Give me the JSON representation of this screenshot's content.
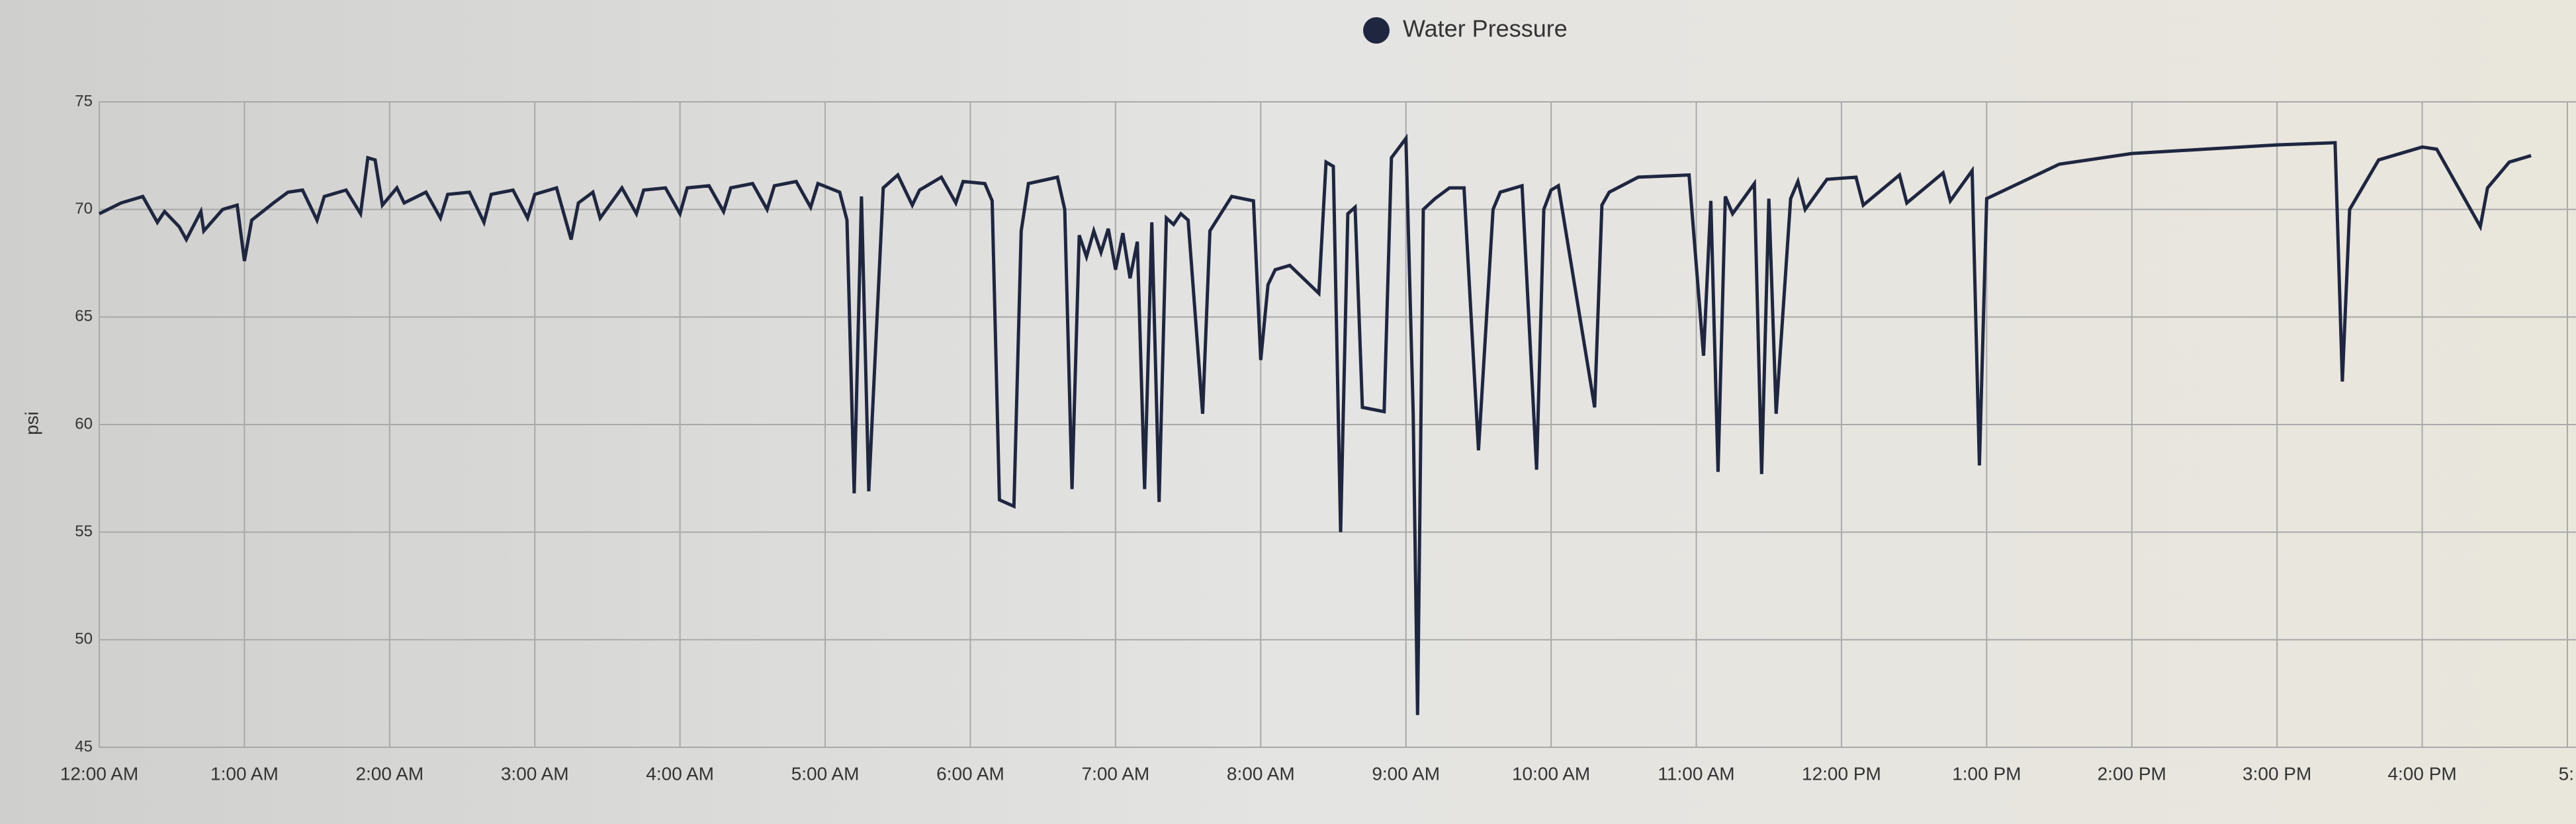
{
  "chart_data": {
    "type": "line",
    "ylabel": "psi",
    "x": [
      0,
      0.15,
      0.3,
      0.4,
      0.45,
      0.55,
      0.6,
      0.7,
      0.72,
      0.85,
      0.95,
      1.0,
      1.05,
      1.2,
      1.3,
      1.4,
      1.5,
      1.55,
      1.7,
      1.8,
      1.85,
      1.9,
      1.95,
      2.05,
      2.1,
      2.25,
      2.35,
      2.4,
      2.55,
      2.65,
      2.7,
      2.85,
      2.95,
      3.0,
      3.15,
      3.25,
      3.3,
      3.4,
      3.45,
      3.6,
      3.7,
      3.75,
      3.9,
      4.0,
      4.05,
      4.2,
      4.3,
      4.35,
      4.5,
      4.6,
      4.65,
      4.8,
      4.9,
      4.95,
      5.1,
      5.15,
      5.2,
      5.25,
      5.3,
      5.4,
      5.5,
      5.6,
      5.65,
      5.8,
      5.9,
      5.95,
      6.1,
      6.15,
      6.2,
      6.3,
      6.35,
      6.4,
      6.6,
      6.65,
      6.7,
      6.75,
      6.8,
      6.85,
      6.9,
      6.95,
      7.0,
      7.05,
      7.1,
      7.15,
      7.2,
      7.25,
      7.3,
      7.35,
      7.4,
      7.45,
      7.5,
      7.6,
      7.65,
      7.8,
      7.95,
      8.0,
      8.05,
      8.1,
      8.2,
      8.4,
      8.45,
      8.5,
      8.55,
      8.6,
      8.65,
      8.7,
      8.85,
      8.9,
      9.0,
      9.05,
      9.08,
      9.12,
      9.2,
      9.3,
      9.4,
      9.5,
      9.6,
      9.65,
      9.8,
      9.9,
      9.95,
      10.0,
      10.05,
      10.3,
      10.35,
      10.4,
      10.6,
      10.95,
      11.05,
      11.1,
      11.15,
      11.2,
      11.25,
      11.4,
      11.45,
      11.5,
      11.55,
      11.65,
      11.7,
      11.75,
      11.9,
      12.1,
      12.15,
      12.4,
      12.45,
      12.7,
      12.75,
      12.9,
      12.95,
      13.0,
      13.5,
      14.0,
      15.0,
      15.4,
      15.45,
      15.5,
      15.7,
      16.0,
      16.1,
      16.4,
      16.45,
      16.6,
      16.75
    ],
    "series": [
      {
        "name": "Water Pressure",
        "color": "#1f2640",
        "values": [
          69.8,
          70.3,
          70.6,
          69.4,
          69.9,
          69.2,
          68.6,
          69.9,
          69.0,
          70.0,
          70.2,
          67.6,
          69.5,
          70.3,
          70.8,
          70.9,
          69.5,
          70.6,
          70.9,
          69.8,
          72.4,
          72.3,
          70.2,
          71.0,
          70.3,
          70.8,
          69.6,
          70.7,
          70.8,
          69.4,
          70.7,
          70.9,
          69.6,
          70.7,
          71.0,
          68.6,
          70.3,
          70.8,
          69.6,
          71.0,
          69.8,
          70.9,
          71.0,
          69.8,
          71.0,
          71.1,
          69.9,
          71.0,
          71.2,
          70.0,
          71.1,
          71.3,
          70.1,
          71.2,
          70.8,
          69.5,
          56.8,
          70.6,
          56.9,
          71.0,
          71.6,
          70.2,
          70.9,
          71.5,
          70.3,
          71.3,
          71.2,
          70.4,
          56.5,
          56.2,
          69.0,
          71.2,
          71.5,
          70.0,
          57.0,
          68.8,
          67.8,
          69.0,
          68.0,
          69.1,
          67.2,
          68.9,
          66.8,
          68.5,
          57.0,
          69.4,
          56.4,
          69.6,
          69.3,
          69.8,
          69.5,
          60.5,
          69.0,
          70.6,
          70.4,
          63.0,
          66.5,
          67.2,
          67.4,
          66.1,
          72.2,
          72.0,
          55.0,
          69.8,
          70.1,
          60.8,
          60.6,
          72.4,
          73.3,
          60.5,
          46.5,
          70.0,
          70.5,
          71.0,
          71.0,
          58.8,
          70.0,
          70.8,
          71.1,
          57.9,
          70.0,
          70.9,
          71.1,
          60.8,
          70.2,
          70.8,
          71.5,
          71.6,
          63.2,
          70.4,
          57.8,
          70.6,
          69.8,
          71.2,
          57.7,
          70.5,
          60.5,
          70.5,
          71.3,
          70.0,
          71.4,
          71.5,
          70.2,
          71.6,
          70.3,
          71.7,
          70.4,
          71.8,
          58.1,
          70.5,
          72.1,
          72.6,
          73.0,
          73.1,
          62.0,
          70.0,
          72.3,
          72.9,
          72.8,
          69.2,
          71.0,
          72.2,
          72.5
        ]
      }
    ],
    "xlim": [
      0,
      17
    ],
    "xticks": [
      {
        "value": 0,
        "label": "12:00 AM"
      },
      {
        "value": 1,
        "label": "1:00 AM"
      },
      {
        "value": 2,
        "label": "2:00 AM"
      },
      {
        "value": 3,
        "label": "3:00 AM"
      },
      {
        "value": 4,
        "label": "4:00 AM"
      },
      {
        "value": 5,
        "label": "5:00 AM"
      },
      {
        "value": 6,
        "label": "6:00 AM"
      },
      {
        "value": 7,
        "label": "7:00 AM"
      },
      {
        "value": 8,
        "label": "8:00 AM"
      },
      {
        "value": 9,
        "label": "9:00 AM"
      },
      {
        "value": 10,
        "label": "10:00 AM"
      },
      {
        "value": 11,
        "label": "11:00 AM"
      },
      {
        "value": 12,
        "label": "12:00 PM"
      },
      {
        "value": 13,
        "label": "1:00 PM"
      },
      {
        "value": 14,
        "label": "2:00 PM"
      },
      {
        "value": 15,
        "label": "3:00 PM"
      },
      {
        "value": 16,
        "label": "4:00 PM"
      },
      {
        "value": 17,
        "label": "5:"
      }
    ],
    "ylim": [
      45,
      75
    ],
    "yticks": [
      45,
      50,
      55,
      60,
      65,
      70,
      75
    ],
    "grid": true,
    "legend": "top"
  }
}
